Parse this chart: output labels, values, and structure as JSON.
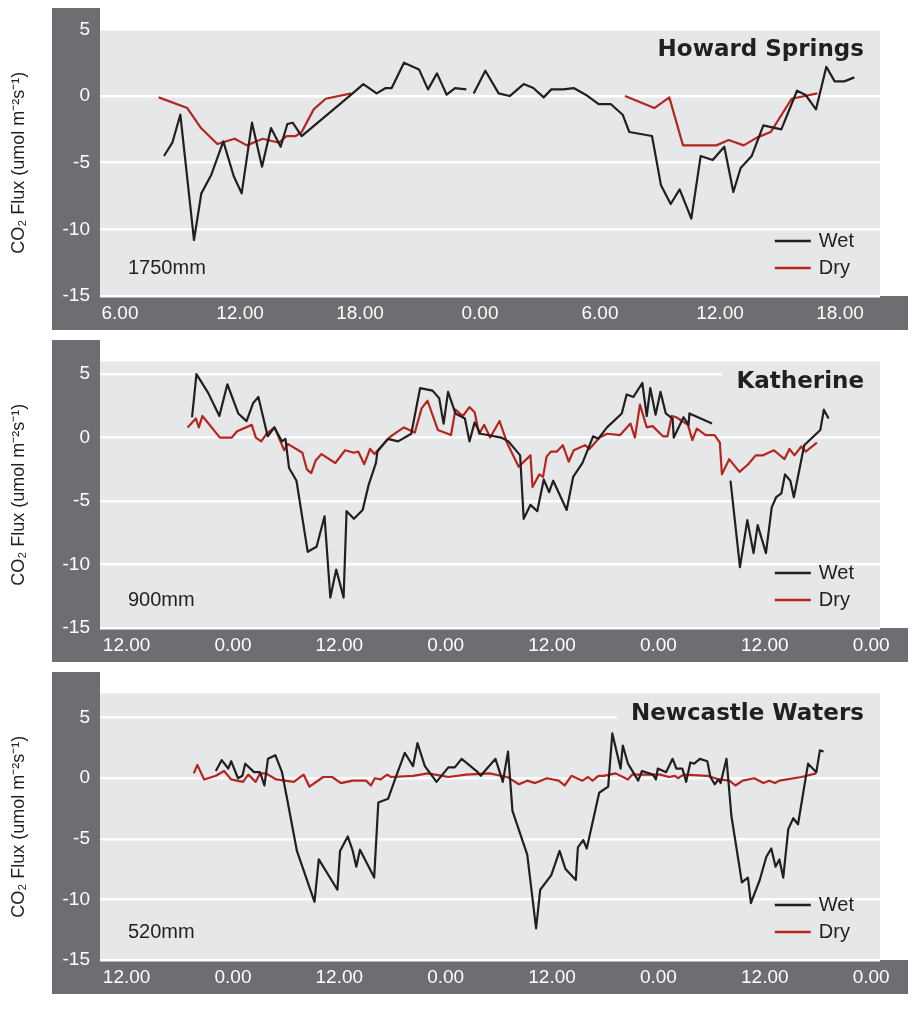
{
  "chart_data": [
    {
      "type": "line",
      "title": "Howard Springs",
      "ylabel": "CO₂ Flux (umol m⁻²s⁻¹)",
      "annotations": [
        "1750mm"
      ],
      "xlim": [
        "2000-01-01T05:00",
        "2000-01-02T20:00"
      ],
      "xticks": [
        {
          "value": "2000-01-01T06:00",
          "label": "6.00"
        },
        {
          "value": "2000-01-01T12:00",
          "label": "12.00"
        },
        {
          "value": "2000-01-01T18:00",
          "label": "18.00"
        },
        {
          "value": "2000-01-02T00:00",
          "label": "0.00"
        },
        {
          "value": "2000-01-02T06:00",
          "label": "6.00"
        },
        {
          "value": "2000-01-02T12:00",
          "label": "12.00"
        },
        {
          "value": "2000-01-02T18:00",
          "label": "18.00"
        }
      ],
      "ylim": [
        -15,
        5
      ],
      "yticks": [
        -15,
        -10,
        -5,
        0,
        5
      ],
      "grid": "y",
      "legend": "bottom right",
      "marker": "none",
      "series": [
        {
          "name": "Wet",
          "color": "#231f20",
          "x": [
            "2000-01-01T08:12",
            "2000-01-01T08:37",
            "2000-01-01T09:01",
            "2000-01-01T09:42",
            "2000-01-01T10:04",
            "2000-01-01T10:34",
            "2000-01-01T11:10",
            "2000-01-01T11:41",
            "2000-01-01T12:05",
            "2000-01-01T12:36",
            "2000-01-01T13:06",
            "2000-01-01T13:33",
            "2000-01-01T14:02",
            "2000-01-01T14:22",
            "2000-01-01T14:38",
            "2000-01-01T15:05",
            "2000-01-01T17:38",
            "2000-01-01T18:10",
            "2000-01-01T18:50",
            "2000-01-01T19:17",
            "2000-01-01T19:35",
            "2000-01-01T20:12",
            "2000-01-01T20:57",
            "2000-01-01T21:24",
            "2000-01-01T21:51",
            "2000-01-01T22:20",
            "2000-01-01T22:45",
            "2000-01-01T23:19",
            "2000-01-01T23:30",
            "2000-01-01T23:41",
            "2000-01-02T00:16",
            "2000-01-02T00:56",
            "2000-01-02T01:29",
            "2000-01-02T02:11",
            "2000-01-02T02:40",
            "2000-01-02T03:11",
            "2000-01-02T03:34",
            "2000-01-02T04:10",
            "2000-01-02T04:41",
            "2000-01-02T05:17",
            "2000-01-02T05:56",
            "2000-01-02T06:32",
            "2000-01-02T07:08",
            "2000-01-02T07:28",
            "2000-01-02T08:36",
            "2000-01-02T09:03",
            "2000-01-02T09:32",
            "2000-01-02T09:59",
            "2000-01-02T10:34",
            "2000-01-02T11:02",
            "2000-01-02T11:38",
            "2000-01-02T12:13",
            "2000-01-02T12:40",
            "2000-01-02T13:02",
            "2000-01-02T13:35",
            "2000-01-02T14:10",
            "2000-01-02T15:04",
            "2000-01-02T15:51",
            "2000-01-02T16:16",
            "2000-01-02T16:48",
            "2000-01-02T17:19",
            "2000-01-02T17:44",
            "2000-01-02T18:13",
            "2000-01-02T18:43"
          ],
          "values": [
            -4.5,
            -3.5,
            -1.4,
            -10.8,
            -7.3,
            -5.9,
            -3.4,
            -6.0,
            -7.3,
            -2.0,
            -5.3,
            -2.4,
            -3.8,
            -2.1,
            -2.0,
            -3.0,
            0.2,
            0.9,
            0.2,
            0.6,
            0.6,
            2.5,
            2.0,
            0.5,
            1.7,
            0.1,
            0.6,
            0.5,
            null,
            0.2,
            1.9,
            0.2,
            0.0,
            0.9,
            0.6,
            -0.1,
            0.5,
            0.5,
            0.6,
            0.1,
            -0.6,
            -0.6,
            -1.4,
            -2.7,
            -3.0,
            -6.7,
            -8.1,
            -7.0,
            -9.2,
            -4.5,
            -4.8,
            -3.8,
            -7.2,
            -5.4,
            -4.5,
            -2.2,
            -2.5,
            0.4,
            0.1,
            -1.0,
            2.2,
            1.1,
            1.1,
            1.4
          ]
        },
        {
          "name": "Dry",
          "color": "#b5261e",
          "x": [
            "2000-01-01T07:56",
            "2000-01-01T09:22",
            "2000-01-01T10:03",
            "2000-01-01T10:52",
            "2000-01-01T11:44",
            "2000-01-01T12:21",
            "2000-01-01T13:08",
            "2000-01-01T13:57",
            "2000-01-01T14:20",
            "2000-01-01T14:47",
            "2000-01-01T15:05",
            "2000-01-01T15:41",
            "2000-01-01T16:17",
            "2000-01-01T17:34",
            "2000-01-02T00:00",
            "2000-01-02T07:15",
            "2000-01-02T08:43",
            "2000-01-02T09:28",
            "2000-01-02T10:09",
            "2000-01-02T11:49",
            "2000-01-02T12:26",
            "2000-01-02T13:11",
            "2000-01-02T13:52",
            "2000-01-02T14:32",
            "2000-01-02T15:35",
            "2000-01-02T16:52"
          ],
          "values": [
            -0.1,
            -0.9,
            -2.4,
            -3.6,
            -3.2,
            -3.7,
            -3.2,
            -3.5,
            -3.0,
            -3.0,
            -2.7,
            -1.0,
            -0.2,
            0.2,
            null,
            0.0,
            -0.9,
            -0.1,
            -3.7,
            -3.7,
            -3.3,
            -3.7,
            -3.1,
            -2.7,
            -0.2,
            0.2
          ]
        }
      ]
    },
    {
      "type": "line",
      "title": "Katherine",
      "ylabel": "CO₂ Flux (umol m⁻²s⁻¹)",
      "annotations": [
        "900mm"
      ],
      "xlim": [
        "2000-01-01T09:00",
        "2000-01-05T01:00"
      ],
      "xticks": [
        {
          "value": "2000-01-01T12:00",
          "label": "12.00"
        },
        {
          "value": "2000-01-02T00:00",
          "label": "0.00"
        },
        {
          "value": "2000-01-02T12:00",
          "label": "12.00"
        },
        {
          "value": "2000-01-03T00:00",
          "label": "0.00"
        },
        {
          "value": "2000-01-03T12:00",
          "label": "12.00"
        },
        {
          "value": "2000-01-04T00:00",
          "label": "0.00"
        },
        {
          "value": "2000-01-04T12:00",
          "label": "12.00"
        },
        {
          "value": "2000-01-05T00:00",
          "label": "0.00"
        }
      ],
      "ylim": [
        -15,
        6
      ],
      "yticks": [
        -15,
        -10,
        -5,
        0,
        5
      ],
      "grid": "y",
      "legend": "bottom right",
      "marker": "none",
      "series": [
        {
          "name": "Wet",
          "color": "#231f20",
          "x": [
            "2000-01-01T19:23",
            "2000-01-01T19:53",
            "2000-01-01T21:13",
            "2000-01-01T22:28",
            "2000-01-01T23:22",
            "2000-01-02T00:36",
            "2000-01-02T01:32",
            "2000-01-02T02:16",
            "2000-01-02T02:52",
            "2000-01-02T03:55",
            "2000-01-02T04:41",
            "2000-01-02T05:31",
            "2000-01-02T05:55",
            "2000-01-02T06:20",
            "2000-01-02T07:10",
            "2000-01-02T08:26",
            "2000-01-02T09:26",
            "2000-01-02T10:20",
            "2000-01-02T10:59",
            "2000-01-02T11:39",
            "2000-01-02T12:29",
            "2000-01-02T12:49",
            "2000-01-02T13:39",
            "2000-01-02T14:38",
            "2000-01-02T15:19",
            "2000-01-02T16:08",
            "2000-01-02T16:18",
            "2000-01-02T17:28",
            "2000-01-02T18:38",
            "2000-01-02T20:07",
            "2000-01-02T21:07",
            "2000-01-02T22:31",
            "2000-01-02T23:16",
            "2000-01-02T23:46",
            "2000-01-03T00:16",
            "2000-01-03T01:06",
            "2000-01-03T02:10",
            "2000-01-03T02:41",
            "2000-01-03T03:16",
            "2000-01-03T03:55",
            "2000-01-03T04:45",
            "2000-01-03T06:15",
            "2000-01-03T07:05",
            "2000-01-03T08:24",
            "2000-01-03T08:48",
            "2000-01-03T09:34",
            "2000-01-03T10:20",
            "2000-01-03T11:04",
            "2000-01-03T11:40",
            "2000-01-03T12:08",
            "2000-01-03T13:39",
            "2000-01-03T14:23",
            "2000-01-03T15:26",
            "2000-01-03T16:38",
            "2000-01-03T17:12",
            "2000-01-03T18:12",
            "2000-01-03T19:52",
            "2000-01-03T20:25",
            "2000-01-03T21:11",
            "2000-01-03T22:11",
            "2000-01-03T22:41",
            "2000-01-03T23:05",
            "2000-01-03T23:41",
            "2000-01-04T00:14",
            "2000-01-04T00:50",
            "2000-01-04T01:36",
            "2000-01-04T01:44",
            "2000-01-04T02:50",
            "2000-01-04T03:24",
            "2000-01-04T03:30",
            "2000-01-04T06:03",
            "2000-01-04T07:00",
            "2000-01-04T08:08",
            "2000-01-04T09:12",
            "2000-01-04T10:02",
            "2000-01-04T10:44",
            "2000-01-04T11:12",
            "2000-01-04T12:08",
            "2000-01-04T12:47",
            "2000-01-04T13:17",
            "2000-01-04T13:52",
            "2000-01-04T14:17",
            "2000-01-04T14:53",
            "2000-01-04T15:17",
            "2000-01-04T16:27",
            "2000-01-04T18:16",
            "2000-01-04T18:40",
            "2000-01-04T19:12"
          ],
          "values": [
            1.6,
            5.0,
            3.5,
            1.7,
            4.2,
            1.9,
            1.3,
            2.7,
            3.2,
            0.1,
            0.8,
            -0.3,
            -0.1,
            -2.4,
            -3.4,
            -9.0,
            -8.6,
            -6.2,
            -12.6,
            -10.4,
            -12.6,
            -5.8,
            -6.4,
            -5.7,
            -3.7,
            -2.0,
            -1.1,
            -0.1,
            -0.3,
            0.3,
            3.9,
            3.7,
            3.1,
            1.1,
            3.6,
            1.9,
            1.5,
            -0.3,
            1.2,
            0.3,
            0.2,
            0.0,
            -0.3,
            -1.4,
            -6.4,
            -5.3,
            -5.8,
            -3.3,
            -4.3,
            -3.4,
            -5.7,
            -3.1,
            -2.0,
            0.1,
            -0.1,
            0.8,
            1.9,
            3.4,
            3.2,
            4.3,
            1.7,
            3.9,
            1.8,
            3.6,
            1.9,
            1.5,
            0.0,
            1.6,
            1.0,
            1.9,
            1.1,
            null,
            -3.4,
            -10.2,
            -6.5,
            -9.1,
            -6.9,
            -9.1,
            -5.5,
            -4.7,
            -4.4,
            -2.9,
            -3.4,
            -4.7,
            -0.6,
            0.6,
            2.2,
            1.5
          ]
        },
        {
          "name": "Dry",
          "color": "#b5261e",
          "x": [
            "2000-01-01T18:53",
            "2000-01-01T19:49",
            "2000-01-01T20:09",
            "2000-01-01T20:33",
            "2000-01-01T22:32",
            "2000-01-01T23:52",
            "2000-01-02T00:28",
            "2000-01-02T02:07",
            "2000-01-02T02:35",
            "2000-01-02T03:11",
            "2000-01-02T03:47",
            "2000-01-02T04:41",
            "2000-01-02T05:47",
            "2000-01-02T06:11",
            "2000-01-02T07:50",
            "2000-01-02T08:20",
            "2000-01-02T08:50",
            "2000-01-02T09:20",
            "2000-01-02T09:59",
            "2000-01-02T11:33",
            "2000-01-02T12:39",
            "2000-01-02T13:39",
            "2000-01-02T14:08",
            "2000-01-02T14:49",
            "2000-01-02T15:28",
            "2000-01-02T15:58",
            "2000-01-02T17:48",
            "2000-01-02T19:17",
            "2000-01-02T20:31",
            "2000-01-02T21:17",
            "2000-01-02T21:57",
            "2000-01-02T23:07",
            "2000-01-03T00:36",
            "2000-01-03T01:06",
            "2000-01-03T01:56",
            "2000-01-03T02:41",
            "2000-01-03T03:16",
            "2000-01-03T03:46",
            "2000-01-03T04:21",
            "2000-01-03T05:01",
            "2000-01-03T06:05",
            "2000-01-03T06:55",
            "2000-01-03T08:14",
            "2000-01-03T09:34",
            "2000-01-03T09:48",
            "2000-01-03T10:34",
            "2000-01-03T10:59",
            "2000-01-03T11:23",
            "2000-01-03T11:53",
            "2000-01-03T12:33",
            "2000-01-03T13:13",
            "2000-01-03T13:53",
            "2000-01-03T14:27",
            "2000-01-03T15:43",
            "2000-01-03T16:13",
            "2000-01-03T17:22",
            "2000-01-03T18:12",
            "2000-01-03T19:41",
            "2000-01-03T20:51",
            "2000-01-03T21:21",
            "2000-01-03T21:55",
            "2000-01-03T22:41",
            "2000-01-03T23:21",
            "2000-01-04T00:31",
            "2000-01-04T01:01",
            "2000-01-04T01:31",
            "2000-01-04T02:01",
            "2000-01-04T03:20",
            "2000-01-04T03:50",
            "2000-01-04T04:20",
            "2000-01-04T05:20",
            "2000-01-04T06:20",
            "2000-01-04T06:56",
            "2000-01-04T07:10",
            "2000-01-04T07:59",
            "2000-01-04T09:09",
            "2000-01-04T10:08",
            "2000-01-04T10:58",
            "2000-01-04T11:48",
            "2000-01-04T13:02",
            "2000-01-04T14:13",
            "2000-01-04T14:47",
            "2000-01-04T15:21",
            "2000-01-04T16:07",
            "2000-01-04T16:37",
            "2000-01-04T17:53"
          ],
          "values": [
            0.8,
            1.5,
            0.8,
            1.7,
            0.0,
            0.0,
            0.5,
            1.0,
            0.0,
            -0.3,
            0.3,
            0.8,
            -1.0,
            -0.5,
            -1.2,
            -2.5,
            -2.8,
            -1.8,
            -1.3,
            -2.0,
            -1.0,
            -1.2,
            -1.1,
            -2.1,
            -0.9,
            -1.3,
            0.1,
            0.8,
            0.4,
            2.3,
            2.9,
            0.6,
            0.2,
            2.2,
            1.7,
            2.4,
            2.0,
            0.3,
            1.0,
            0.0,
            1.3,
            -0.4,
            -2.3,
            -1.4,
            -3.9,
            -2.9,
            -3.1,
            -1.5,
            -1.1,
            -1.1,
            -0.6,
            -1.9,
            -1.0,
            -0.6,
            -0.9,
            0.0,
            0.3,
            0.2,
            1.1,
            0.0,
            2.6,
            0.8,
            0.9,
            0.1,
            0.1,
            1.7,
            1.6,
            1.0,
            -0.2,
            0.7,
            0.2,
            0.2,
            -0.4,
            -2.9,
            -1.7,
            -2.7,
            -2.1,
            -1.4,
            -1.4,
            -1.0,
            -1.7,
            -0.9,
            -1.4,
            -0.7,
            -1.1,
            -0.4
          ]
        }
      ]
    },
    {
      "type": "line",
      "title": "Newcastle Waters",
      "ylabel": "CO₂ Flux (umol m⁻²s⁻¹)",
      "annotations": [
        "520mm"
      ],
      "xlim": [
        "2000-01-01T09:00",
        "2000-01-05T01:00"
      ],
      "xticks": [
        {
          "value": "2000-01-01T12:00",
          "label": "12.00"
        },
        {
          "value": "2000-01-02T00:00",
          "label": "0.00"
        },
        {
          "value": "2000-01-02T12:00",
          "label": "12.00"
        },
        {
          "value": "2000-01-03T00:00",
          "label": "0.00"
        },
        {
          "value": "2000-01-03T12:00",
          "label": "12.00"
        },
        {
          "value": "2000-01-04T00:00",
          "label": "0.00"
        },
        {
          "value": "2000-01-04T12:00",
          "label": "12.00"
        },
        {
          "value": "2000-01-05T00:00",
          "label": "0.00"
        }
      ],
      "ylim": [
        -15,
        7
      ],
      "yticks": [
        -15,
        -10,
        -5,
        0,
        5
      ],
      "grid": "y",
      "legend": "bottom right",
      "marker": "none",
      "series": [
        {
          "name": "Wet",
          "color": "#231f20",
          "x": [
            "2000-01-01T22:04",
            "2000-01-01T22:44",
            "2000-01-01T23:28",
            "2000-01-01T23:48",
            "2000-01-02T00:34",
            "2000-01-02T01:04",
            "2000-01-02T01:23",
            "2000-01-02T02:23",
            "2000-01-02T03:03",
            "2000-01-02T03:33",
            "2000-01-02T03:57",
            "2000-01-02T04:47",
            "2000-01-02T05:32",
            "2000-01-02T06:02",
            "2000-01-02T07:13",
            "2000-01-02T09:12",
            "2000-01-02T09:41",
            "2000-01-02T11:47",
            "2000-01-02T12:05",
            "2000-01-02T12:57",
            "2000-01-02T13:31",
            "2000-01-02T13:55",
            "2000-01-02T14:20",
            "2000-01-02T15:56",
            "2000-01-02T16:24",
            "2000-01-02T17:30",
            "2000-01-02T18:20",
            "2000-01-02T19:23",
            "2000-01-02T20:19",
            "2000-01-02T20:49",
            "2000-01-02T21:39",
            "2000-01-02T22:58",
            "2000-01-02T23:38",
            "2000-01-03T00:18",
            "2000-01-03T01:02",
            "2000-01-03T01:48",
            "2000-01-03T03:37",
            "2000-01-03T03:57",
            "2000-01-03T05:37",
            "2000-01-03T06:27",
            "2000-01-03T07:02",
            "2000-01-03T07:32",
            "2000-01-03T09:12",
            "2000-01-03T10:12",
            "2000-01-03T10:40",
            "2000-01-03T11:55",
            "2000-01-03T12:51",
            "2000-01-03T13:31",
            "2000-01-03T14:41",
            "2000-01-03T14:55",
            "2000-01-03T15:31",
            "2000-01-03T15:55",
            "2000-01-03T17:19",
            "2000-01-03T18:20",
            "2000-01-03T18:48",
            "2000-01-03T19:44",
            "2000-01-03T19:59",
            "2000-01-03T20:34",
            "2000-01-03T21:43",
            "2000-01-03T22:09",
            "2000-01-03T23:23",
            "2000-01-03T23:43",
            "2000-01-03T23:56",
            "2000-01-04T00:52",
            "2000-01-04T01:36",
            "2000-01-04T02:02",
            "2000-01-04T02:42",
            "2000-01-04T03:08",
            "2000-01-04T03:36",
            "2000-01-04T04:02",
            "2000-01-04T04:41",
            "2000-01-04T05:31",
            "2000-01-04T05:52",
            "2000-01-04T06:21",
            "2000-01-04T06:47",
            "2000-01-04T07:01",
            "2000-01-04T07:41",
            "2000-01-04T08:14",
            "2000-01-04T09:25",
            "2000-01-04T10:06",
            "2000-01-04T10:26",
            "2000-01-04T11:26",
            "2000-01-04T12:10",
            "2000-01-04T12:44",
            "2000-01-04T13:13",
            "2000-01-04T13:39",
            "2000-01-04T14:05",
            "2000-01-04T14:39",
            "2000-01-04T15:13",
            "2000-01-04T15:45",
            "2000-01-04T16:53",
            "2000-01-04T17:49",
            "2000-01-04T18:13",
            "2000-01-04T18:38"
          ],
          "values": [
            0.6,
            1.5,
            0.8,
            1.4,
            0.0,
            0.2,
            1.2,
            0.5,
            0.5,
            -0.6,
            1.6,
            1.9,
            0.5,
            -1.4,
            -6.0,
            -10.2,
            -6.7,
            -9.2,
            -6.0,
            -4.8,
            -6.0,
            -7.3,
            -5.9,
            -8.2,
            -2.0,
            -1.7,
            0.0,
            2.1,
            1.0,
            2.9,
            1.0,
            -0.3,
            0.3,
            0.9,
            0.9,
            1.6,
            0.5,
            0.2,
            1.6,
            -0.3,
            2.2,
            -2.7,
            -6.3,
            -12.4,
            -9.2,
            -8.0,
            -6.0,
            -7.5,
            -8.4,
            -5.7,
            -5.1,
            -5.8,
            -1.2,
            -0.7,
            3.7,
            0.8,
            2.7,
            1.2,
            -0.2,
            0.6,
            0.3,
            -0.1,
            0.8,
            0.5,
            1.6,
            0.8,
            0.8,
            -0.3,
            1.3,
            1.2,
            1.6,
            1.4,
            0.1,
            -0.5,
            -0.1,
            -0.4,
            1.6,
            -3.1,
            -8.6,
            -8.2,
            -10.3,
            -8.4,
            -6.5,
            -5.8,
            -7.3,
            -6.7,
            -8.2,
            -4.2,
            -3.3,
            -3.8,
            1.2,
            0.5,
            2.3,
            2.2
          ]
        },
        {
          "name": "Dry",
          "color": "#b5261e",
          "x": [
            "2000-01-01T19:35",
            "2000-01-01T19:59",
            "2000-01-01T20:45",
            "2000-01-01T22:04",
            "2000-01-01T23:00",
            "2000-01-01T23:48",
            "2000-01-02T01:08",
            "2000-01-02T01:44",
            "2000-01-02T02:34",
            "2000-01-02T03:03",
            "2000-01-02T03:43",
            "2000-01-02T04:53",
            "2000-01-02T06:52",
            "2000-01-02T07:58",
            "2000-01-02T08:38",
            "2000-01-02T10:11",
            "2000-01-02T11:11",
            "2000-01-02T12:11",
            "2000-01-02T13:31",
            "2000-01-02T15:01",
            "2000-01-02T15:34",
            "2000-01-02T16:00",
            "2000-01-02T16:40",
            "2000-01-02T17:24",
            "2000-01-02T17:50",
            "2000-01-02T20:19",
            "2000-01-02T21:59",
            "2000-01-02T23:38",
            "2000-01-03T00:18",
            "2000-01-03T02:18",
            "2000-01-03T04:57",
            "2000-01-03T06:56",
            "2000-01-03T08:16",
            "2000-01-03T09:12",
            "2000-01-03T10:06",
            "2000-01-03T11:25",
            "2000-01-03T12:45",
            "2000-01-03T13:25",
            "2000-01-03T14:11",
            "2000-01-03T15:25",
            "2000-01-03T16:04",
            "2000-01-03T16:34",
            "2000-01-03T17:14",
            "2000-01-03T17:50",
            "2000-01-03T19:10",
            "2000-01-03T20:34",
            "2000-01-03T21:03",
            "2000-01-04T00:13",
            "2000-01-04T01:12",
            "2000-01-04T01:52",
            "2000-01-04T02:12",
            "2000-01-04T02:52",
            "2000-01-04T05:31",
            "2000-01-04T06:51",
            "2000-01-04T08:01",
            "2000-01-04T08:41",
            "2000-01-04T09:31",
            "2000-01-04T10:50",
            "2000-01-04T11:50",
            "2000-01-04T12:30",
            "2000-01-04T13:10",
            "2000-01-04T13:39",
            "2000-01-04T16:08",
            "2000-01-04T17:48"
          ],
          "values": [
            0.4,
            1.1,
            -0.1,
            0.2,
            0.6,
            -0.1,
            -0.3,
            0.3,
            -0.3,
            0.4,
            0.4,
            -0.1,
            -0.3,
            0.3,
            -0.7,
            0.1,
            0.1,
            -0.4,
            -0.2,
            -0.2,
            -0.6,
            0.0,
            -0.1,
            0.3,
            0.1,
            0.2,
            0.4,
            0.2,
            0.1,
            0.3,
            0.4,
            0.1,
            -0.5,
            -0.2,
            -0.4,
            0.0,
            -0.2,
            -0.6,
            0.2,
            -0.2,
            0.1,
            -0.2,
            0.2,
            0.2,
            0.4,
            -0.1,
            0.3,
            0.3,
            0.1,
            0.2,
            0.0,
            0.3,
            0.2,
            -0.1,
            -0.2,
            -0.6,
            -0.2,
            0.0,
            -0.4,
            -0.2,
            -0.4,
            -0.2,
            0.1,
            0.4
          ]
        }
      ]
    }
  ]
}
